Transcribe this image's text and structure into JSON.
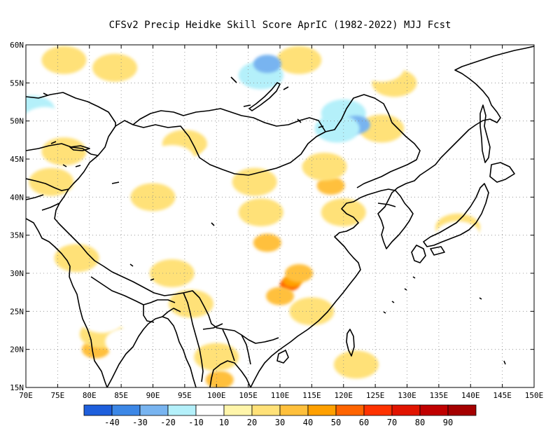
{
  "title": "CFSv2 Precip Heidke Skill Score AprIC (1982-2022) MJJ Fcst",
  "map": {
    "lon_range": [
      70,
      150
    ],
    "lat_range": [
      15,
      60
    ],
    "lon_ticks": [
      "70E",
      "75E",
      "80E",
      "85E",
      "90E",
      "95E",
      "100E",
      "105E",
      "110E",
      "115E",
      "120E",
      "125E",
      "130E",
      "135E",
      "140E",
      "145E",
      "150E"
    ],
    "lat_ticks": [
      "15N",
      "20N",
      "25N",
      "30N",
      "35N",
      "40N",
      "45N",
      "50N",
      "55N",
      "60N"
    ],
    "grid": "dotted",
    "shading_regions": [
      {
        "lon": 111.5,
        "lat": 28.5,
        "value": 50
      },
      {
        "lon": 112,
        "lat": 29,
        "value": 40
      },
      {
        "lon": 113,
        "lat": 30,
        "value": 30
      },
      {
        "lon": 110,
        "lat": 27,
        "value": 30
      },
      {
        "lon": 108,
        "lat": 34,
        "value": 30
      },
      {
        "lon": 107,
        "lat": 38,
        "value": 20
      },
      {
        "lon": 106,
        "lat": 42,
        "value": 20
      },
      {
        "lon": 118,
        "lat": 41.5,
        "value": 30
      },
      {
        "lon": 117,
        "lat": 44,
        "value": 20
      },
      {
        "lon": 120,
        "lat": 38,
        "value": 20
      },
      {
        "lon": 115,
        "lat": 25,
        "value": 20
      },
      {
        "lon": 100.5,
        "lat": 16,
        "value": 30
      },
      {
        "lon": 100,
        "lat": 19,
        "value": 20
      },
      {
        "lon": 81,
        "lat": 20,
        "value": 30
      },
      {
        "lon": 82,
        "lat": 22,
        "value": 20
      },
      {
        "lon": 78,
        "lat": 32,
        "value": 20
      },
      {
        "lon": 74,
        "lat": 42,
        "value": 20
      },
      {
        "lon": 76,
        "lat": 46,
        "value": 20
      },
      {
        "lon": 76,
        "lat": 58,
        "value": 20
      },
      {
        "lon": 84,
        "lat": 57,
        "value": 20
      },
      {
        "lon": 126,
        "lat": 49,
        "value": 20
      },
      {
        "lon": 128,
        "lat": 55,
        "value": 20
      },
      {
        "lon": 113,
        "lat": 58,
        "value": 20
      },
      {
        "lon": 93,
        "lat": 30,
        "value": 20
      },
      {
        "lon": 96,
        "lat": 26,
        "value": 20
      },
      {
        "lon": 90,
        "lat": 40,
        "value": 20
      },
      {
        "lon": 95,
        "lat": 47,
        "value": 20
      },
      {
        "lon": 138,
        "lat": 36,
        "value": 20
      },
      {
        "lon": 122,
        "lat": 18,
        "value": 20
      },
      {
        "lon": 120,
        "lat": 51,
        "value": -20
      },
      {
        "lon": 122,
        "lat": 49.5,
        "value": -30
      },
      {
        "lon": 119,
        "lat": 49,
        "value": -20
      },
      {
        "lon": 107,
        "lat": 56,
        "value": -20
      },
      {
        "lon": 108,
        "lat": 57.5,
        "value": -30
      },
      {
        "lon": 71,
        "lat": 51.5,
        "value": -20
      },
      {
        "lon": 73,
        "lat": 50,
        "value": -10
      },
      {
        "lon": 93,
        "lat": 51,
        "value": -10
      },
      {
        "lon": 96,
        "lat": 51,
        "value": -10
      },
      {
        "lon": 101,
        "lat": 45,
        "value": -10
      },
      {
        "lon": 89,
        "lat": 44,
        "value": -10
      },
      {
        "lon": 93,
        "lat": 45,
        "value": -10
      },
      {
        "lon": 86,
        "lat": 21,
        "value": -10
      },
      {
        "lon": 82,
        "lat": 24,
        "value": -10
      },
      {
        "lon": 138,
        "lat": 35,
        "value": -10
      },
      {
        "lon": 111,
        "lat": 46,
        "value": -10
      },
      {
        "lon": 100,
        "lat": 58.5,
        "value": -10
      },
      {
        "lon": 126,
        "lat": 57,
        "value": -10
      }
    ]
  },
  "legend": {
    "colors": [
      "#1e5fdc",
      "#3c87e6",
      "#78b4f0",
      "#b4f0fa",
      "#ffffff",
      "#fff5aa",
      "#ffe178",
      "#ffc03c",
      "#ffa000",
      "#ff6400",
      "#ff3200",
      "#e11400",
      "#c00000",
      "#a50000"
    ],
    "labels": [
      "-40",
      "-30",
      "-20",
      "-10",
      "10",
      "20",
      "30",
      "40",
      "50",
      "60",
      "70",
      "80",
      "90"
    ]
  }
}
